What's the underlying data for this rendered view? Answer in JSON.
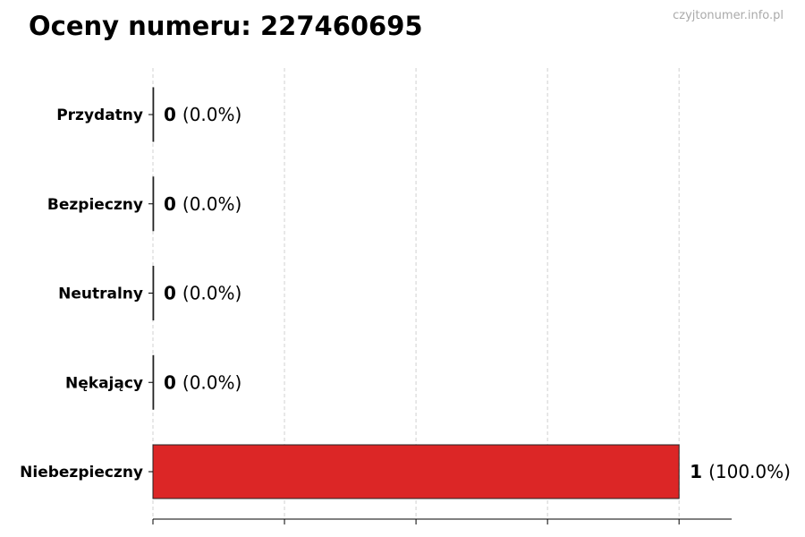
{
  "title": "Oceny numeru: 227460695",
  "watermark": "czyjtonumer.info.pl",
  "chart_data": {
    "type": "bar",
    "orientation": "horizontal",
    "categories": [
      "Przydatny",
      "Bezpieczny",
      "Neutralny",
      "Nękający",
      "Niebezpieczny"
    ],
    "values": [
      0,
      0,
      0,
      0,
      1
    ],
    "labels": [
      "(0.0%)",
      "(0.0%)",
      "(0.0%)",
      "(0.0%)",
      "(100.0%)"
    ],
    "colors": [
      "#2e9e4f",
      "#2e9e4f",
      "#888888",
      "#e08a1e",
      "#dc2626"
    ],
    "xlim": [
      0,
      1.1
    ],
    "xticks": [
      0,
      0.25,
      0.5,
      0.75,
      1.0
    ],
    "grid": "x-dashed",
    "title": "Oceny numeru: 227460695"
  }
}
